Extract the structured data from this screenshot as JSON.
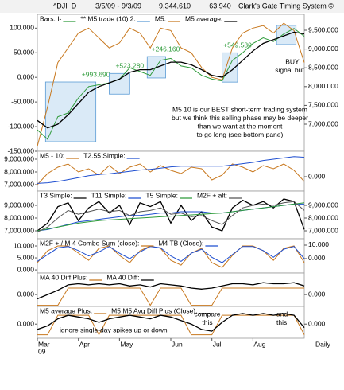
{
  "header": {
    "symbol": "^DJI_D",
    "range": "3/5/09 - 9/3/09",
    "last": "9,344.610",
    "change": "+63.940",
    "title": "Clark's Gate Timing System ©"
  },
  "chart_data": [
    {
      "type": "line",
      "series": [
        {
          "name": "Bars: I-",
          "color": "#2e9b3a",
          "axis": "y2",
          "values": [
            6850,
            6600,
            7200,
            7300,
            7700,
            8000,
            8050,
            8100,
            8200,
            8500,
            8400,
            8300,
            8700,
            8750,
            8550,
            8500,
            8300,
            8200,
            8150,
            8700,
            8900,
            9150,
            9300,
            9200,
            9400,
            9550,
            9340
          ]
        },
        {
          "name": "M5:",
          "color": "#c8781e",
          "values": [
            -140,
            -60,
            30,
            60,
            90,
            100,
            80,
            60,
            70,
            100,
            90,
            60,
            100,
            95,
            60,
            50,
            20,
            0,
            -5,
            60,
            90,
            100,
            105,
            90,
            110,
            95,
            30
          ]
        },
        {
          "name": "M5 average:",
          "color": "#000000",
          "axis": "y2",
          "values": [
            7100,
            6900,
            7000,
            7250,
            7550,
            7850,
            8000,
            8100,
            8200,
            8380,
            8450,
            8450,
            8550,
            8650,
            8650,
            8580,
            8450,
            8300,
            8250,
            8450,
            8700,
            8950,
            9150,
            9250,
            9350,
            9450,
            9400
          ]
        }
      ],
      "trades": {
        "name": "** M5 trade (10) 2:",
        "color": "#5a9bd5",
        "items": [
          {
            "label": "+993.690",
            "x": [
              0.8,
              5.7
            ],
            "y2": [
              6534,
              8123
            ]
          },
          {
            "label": "+523.280",
            "x": [
              7,
              9
            ],
            "y2": [
              7800,
              8350
            ]
          },
          {
            "label": "+246.160",
            "x": [
              10.7,
              12.5
            ],
            "y2": [
              8230,
              8800
            ]
          },
          {
            "label": "+549.580",
            "x": [
              18,
              19.5
            ],
            "y2": [
              8120,
              8900
            ]
          },
          {
            "label": "",
            "x": [
              23.3,
              25.2
            ],
            "y2": [
              9120,
              9630
            ]
          }
        ]
      },
      "notes": [
        [
          "BUY",
          "signal but..."
        ],
        [
          "M5 10 is our BEST short-term trading system",
          "but we think this selling phase may be deeper",
          "than we want at the moment",
          "to go long (see bottom pane)"
        ]
      ],
      "ylim": [
        -150,
        128
      ],
      "yticks": [
        {
          "value": 100,
          "label": "100.000"
        },
        {
          "value": 50,
          "label": "50.000"
        },
        {
          "value": 0,
          "label": "0.000"
        },
        {
          "value": -50,
          "label": "-50.000"
        },
        {
          "value": -100,
          "label": "-100.000"
        },
        {
          "value": -150,
          "label": "-150.000"
        }
      ],
      "y2lim": [
        6280,
        9924
      ],
      "y2ticks": [
        {
          "value": 9500,
          "label": "9,500.000"
        },
        {
          "value": 9000,
          "label": "9,000.000"
        },
        {
          "value": 8500,
          "label": "8,500.000"
        },
        {
          "value": 8000,
          "label": "8,000.000"
        },
        {
          "value": 7500,
          "label": "7,500.000"
        },
        {
          "value": 7000,
          "label": "7,000.000"
        }
      ]
    },
    {
      "type": "line",
      "series": [
        {
          "name": "M5 - 10:",
          "color": "#c8781e",
          "axis": "y2",
          "values": [
            -0.5,
            0.2,
            0.6,
            0.8,
            0.3,
            0.5,
            0.1,
            0.7,
            0.2,
            0.6,
            0.8,
            0.3,
            0.7,
            0.4,
            0.2,
            0.6,
            0.5,
            -0.2,
            0.1,
            0.8,
            0.6,
            0.3,
            0.7,
            0.5,
            0.8,
            0.4,
            -0.3
          ]
        },
        {
          "name": "T2.55 Simple:",
          "color": "#1f4fd0",
          "values": [
            7100,
            7150,
            7250,
            7400,
            7550,
            7700,
            7800,
            7850,
            7950,
            8050,
            8150,
            8200,
            8300,
            8400,
            8450,
            8450,
            8450,
            8450,
            8450,
            8550,
            8650,
            8750,
            8900,
            9000,
            9100,
            9200,
            9150
          ]
        }
      ],
      "ylim": [
        6500,
        9625
      ],
      "yticks": [
        {
          "value": 9000,
          "label": "9,000.000"
        },
        {
          "value": 8000,
          "label": "8,000.000"
        },
        {
          "value": 7000,
          "label": "7,000.000"
        }
      ],
      "y2lim": [
        -0.9,
        1.6
      ],
      "y2ticks": [
        {
          "value": 0,
          "label": "0.000"
        }
      ]
    },
    {
      "type": "line",
      "series": [
        {
          "name": "T3 Simple:",
          "color": "#000000",
          "values": [
            7000,
            7600,
            8900,
            9200,
            7800,
            8800,
            9300,
            8400,
            9000,
            7500,
            9200,
            8900,
            9300,
            7600,
            9000,
            7800,
            8500,
            7300,
            7000,
            8800,
            9400,
            9000,
            9300,
            8800,
            9500,
            9300,
            7100
          ]
        },
        {
          "name": "T11 Simple:",
          "color": "#1f4fd0",
          "values": [
            7000,
            7100,
            7300,
            7500,
            7700,
            7800,
            7900,
            8000,
            8100,
            8200,
            8200,
            8300,
            8400,
            8400,
            8500,
            8500,
            8500,
            8400,
            8400,
            8500,
            8600,
            8700,
            8800,
            8900,
            9000,
            9100,
            9100
          ]
        },
        {
          "name": "T5 Simple:",
          "color": "#2e9b3a",
          "values": [
            7000,
            7150,
            7300,
            7450,
            7600,
            7700,
            7800,
            7850,
            7900,
            7950,
            8000,
            8050,
            8100,
            8150,
            8200,
            8250,
            8300,
            8350,
            8400,
            8500,
            8600,
            8700,
            8800,
            8900,
            9000,
            9100,
            9200
          ]
        },
        {
          "name": "M2F + alt:",
          "color": "#555555",
          "values": [
            6900,
            7300,
            8000,
            8600,
            8300,
            8500,
            8700,
            8500,
            8600,
            8200,
            8500,
            8600,
            8800,
            8300,
            8400,
            8100,
            8200,
            7800,
            7500,
            8200,
            8800,
            9000,
            9100,
            9000,
            9200,
            9300,
            8600
          ]
        }
      ],
      "ylim": [
        6375,
        10125
      ],
      "yticks": [
        {
          "value": 9000,
          "label": "9,000.000"
        },
        {
          "value": 8000,
          "label": "8,000.000"
        },
        {
          "value": 7000,
          "label": "7,000.000"
        }
      ],
      "y2lim": [
        6375,
        10125
      ],
      "y2ticks": [
        {
          "value": 9000,
          "label": "9,000.000"
        },
        {
          "value": 8000,
          "label": "8,000.000"
        },
        {
          "value": 7000,
          "label": "7,000.000"
        }
      ]
    },
    {
      "type": "line",
      "series": [
        {
          "name": "M2F + / M 4 Combo Sum (close):",
          "color": "#c8781e",
          "values": [
            3,
            8,
            10,
            10,
            7,
            4,
            9,
            10,
            6,
            3,
            8,
            10,
            9,
            4,
            2,
            7,
            9,
            3,
            1,
            6,
            10,
            10,
            8,
            4,
            9,
            10,
            3
          ]
        },
        {
          "name": "M4 TB (Close):",
          "color": "#1f4fd0",
          "axis": "y2",
          "values": [
            -2,
            3,
            8,
            9,
            6,
            2,
            5,
            9,
            4,
            0,
            5,
            9,
            8,
            2,
            -2,
            4,
            7,
            1,
            -3,
            3,
            9,
            9,
            6,
            1,
            7,
            9,
            0
          ]
        }
      ],
      "ylim": [
        -1.3,
        13
      ],
      "yticks": [
        {
          "value": 10,
          "label": "10.000"
        },
        {
          "value": 5,
          "label": "5.000"
        },
        {
          "value": 0,
          "label": "0.000"
        }
      ],
      "y2lim": [
        -10.6,
        14.7
      ],
      "y2ticks": [
        {
          "value": 10,
          "label": "10.000"
        },
        {
          "value": 0,
          "label": "0.000"
        }
      ]
    },
    {
      "type": "line",
      "series": [
        {
          "name": "MA 40 Diff Plus:",
          "color": "#c8781e",
          "values": [
            -0.5,
            -0.5,
            -0.5,
            0.3,
            0.3,
            0.3,
            0.3,
            0.3,
            0.3,
            0.3,
            0.3,
            -0.5,
            0.3,
            0.3,
            0.3,
            -0.5,
            -0.5,
            -0.5,
            0.3,
            0.3,
            0.3,
            0.3,
            0.3,
            0.3,
            0.3,
            0.3,
            0.3
          ]
        },
        {
          "name": "MA 40 Diff:",
          "color": "#000000",
          "values": [
            -0.2,
            0,
            0.2,
            0.45,
            0.5,
            0.45,
            0.5,
            0.45,
            0.5,
            0.4,
            0.45,
            0.35,
            0.5,
            0.45,
            0.4,
            0.3,
            0.25,
            0.3,
            0.4,
            0.5,
            0.5,
            0.45,
            0.55,
            0.5,
            0.5,
            0.55,
            0.4
          ]
        }
      ],
      "ylim": [
        -0.55,
        1
      ],
      "yticks": [
        {
          "value": 0,
          "label": "0.000"
        }
      ],
      "y2lim": [
        -0.55,
        1
      ],
      "y2ticks": [
        {
          "value": 0,
          "label": "0.000"
        }
      ]
    },
    {
      "type": "line",
      "series": [
        {
          "name": "M5 average Plus:",
          "color": "#c8781e",
          "values": [
            -0.6,
            -0.6,
            0.5,
            0.5,
            0.5,
            0.5,
            -0.6,
            0.5,
            0.5,
            0.5,
            0.5,
            0.5,
            0.5,
            0.5,
            0.5,
            -0.6,
            -0.6,
            -0.6,
            0.5,
            0.5,
            0.5,
            0.5,
            0.5,
            0.5,
            0.5,
            0.5,
            -0.6
          ]
        },
        {
          "name": "M5 M5 Avg Diff Plus (Close):",
          "color": "#000000",
          "values": [
            -0.3,
            -0.1,
            0.3,
            0.5,
            0.4,
            0.3,
            0.1,
            0.3,
            0.4,
            0.5,
            0.4,
            0.3,
            0.5,
            0.4,
            0.2,
            0.0,
            -0.3,
            -0.4,
            0.1,
            0.5,
            0.6,
            0.5,
            0.6,
            0.5,
            0.6,
            0.5,
            -0.2
          ]
        }
      ],
      "notes": [
        [
          "ignore single-day spikes up or down"
        ],
        [
          "compare",
          "this"
        ],
        [
          "and",
          "this"
        ]
      ],
      "ylim": [
        -0.8,
        1
      ],
      "yticks": [
        {
          "value": 0,
          "label": "0.000"
        }
      ],
      "y2lim": [
        -0.8,
        1
      ],
      "y2ticks": [
        {
          "value": 0,
          "label": "0.000"
        }
      ],
      "categories": [
        "Mar",
        null,
        null,
        null,
        "Apr",
        null,
        null,
        null,
        "May",
        null,
        null,
        null,
        null,
        "Jun",
        null,
        null,
        null,
        "Jul",
        null,
        null,
        null,
        "Aug",
        null,
        null,
        null,
        null,
        null
      ],
      "x_year": "09",
      "x_period": "Daily"
    }
  ]
}
